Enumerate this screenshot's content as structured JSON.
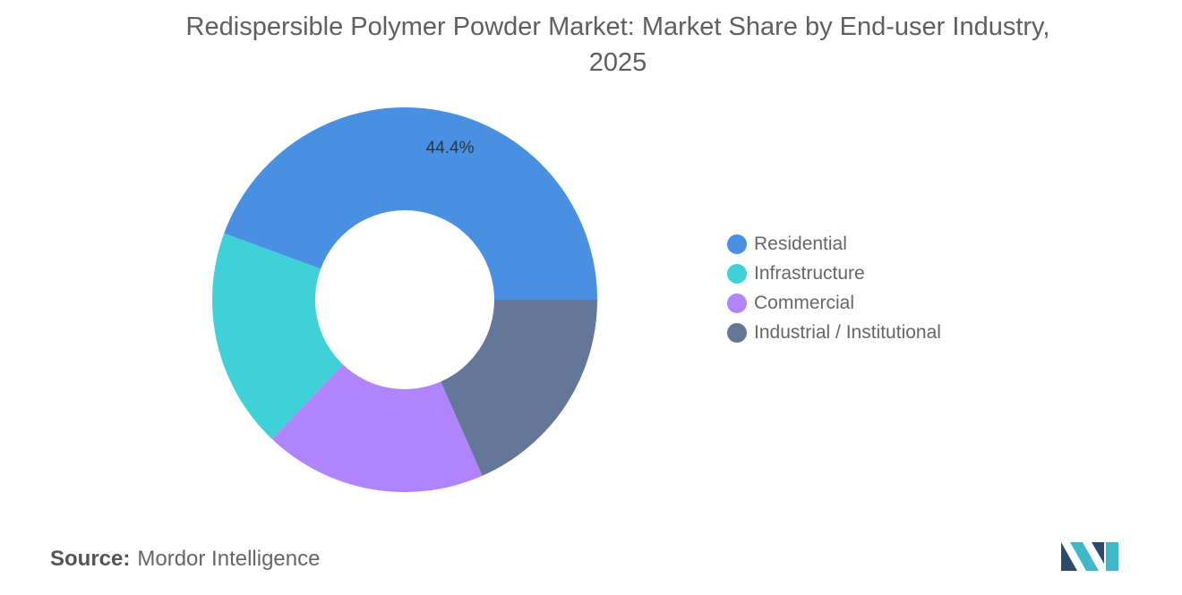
{
  "title_line1": "Redispersible Polymer Powder Market: Market Share by End-user Industry,",
  "title_line2": "2025",
  "source_label": "Source:",
  "source_value": "Mordor Intelligence",
  "chart_data": {
    "type": "pie",
    "variant": "donut",
    "title": "Redispersible Polymer Powder Market: Market Share by End-user Industry, 2025",
    "series": [
      {
        "name": "Residential",
        "value": 44.4,
        "color": "#4a90e2"
      },
      {
        "name": "Infrastructure",
        "value": 18.5,
        "color": "#40d0d8"
      },
      {
        "name": "Commercial",
        "value": 18.7,
        "color": "#b084fc"
      },
      {
        "name": "Industrial / Institutional",
        "value": 18.4,
        "color": "#657799"
      }
    ],
    "data_labels": [
      {
        "series": "Residential",
        "text": "44.4%"
      }
    ],
    "legend_position": "right"
  },
  "logo_colors": [
    "#2d4a6b",
    "#3fb9c9"
  ]
}
